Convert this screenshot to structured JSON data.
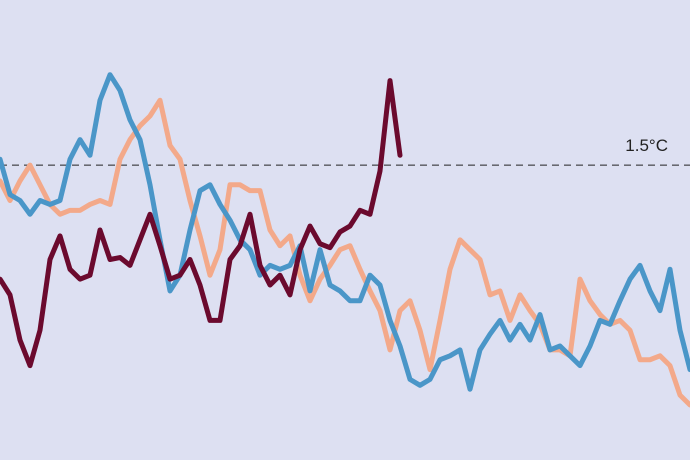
{
  "chart_data": {
    "type": "line",
    "categories": [
      null,
      null,
      null,
      null,
      null,
      null,
      null,
      null,
      null,
      null,
      null,
      null,
      null,
      null,
      null,
      null,
      null,
      null,
      null,
      null,
      null,
      null,
      null,
      null,
      null,
      null,
      null,
      null,
      null,
      null,
      null,
      null,
      null,
      null,
      null,
      null,
      null,
      null,
      null,
      null,
      null,
      null,
      null,
      null,
      null,
      null,
      null,
      null,
      null,
      null,
      null,
      null,
      null,
      null,
      null,
      null,
      null,
      null,
      null,
      null,
      null,
      null,
      null,
      null,
      null,
      null,
      null,
      null,
      null,
      null
    ],
    "ylim": [
      0,
      2.34
    ],
    "reference_lines": [
      {
        "value": 1.5,
        "label": "1.5°C"
      }
    ],
    "series": [
      {
        "color": "#f3a98a",
        "values": [
          1.42,
          1.32,
          1.42,
          1.5,
          1.4,
          1.3,
          1.25,
          1.27,
          1.27,
          1.3,
          1.32,
          1.3,
          1.53,
          1.63,
          1.7,
          1.75,
          1.83,
          1.6,
          1.53,
          1.32,
          1.14,
          0.94,
          1.07,
          1.4,
          1.4,
          1.37,
          1.37,
          1.17,
          1.09,
          1.14,
          0.94,
          0.81,
          0.92,
          0.99,
          1.07,
          1.09,
          0.97,
          0.86,
          0.76,
          0.56,
          0.76,
          0.81,
          0.66,
          0.46,
          0.71,
          0.97,
          1.12,
          1.07,
          1.02,
          0.84,
          0.86,
          0.71,
          0.84,
          0.76,
          0.69,
          0.56,
          0.56,
          0.53,
          0.92,
          0.81,
          0.74,
          0.69,
          0.71,
          0.66,
          0.51,
          0.51,
          0.53,
          0.48,
          0.33,
          0.28
        ]
      },
      {
        "color": "#4a96c8",
        "values": [
          1.53,
          1.35,
          1.32,
          1.25,
          1.32,
          1.3,
          1.32,
          1.53,
          1.63,
          1.55,
          1.83,
          1.96,
          1.88,
          1.73,
          1.63,
          1.4,
          1.12,
          0.86,
          0.94,
          1.17,
          1.37,
          1.4,
          1.3,
          1.22,
          1.12,
          1.07,
          0.94,
          0.99,
          0.97,
          0.99,
          1.09,
          0.86,
          1.07,
          0.89,
          0.86,
          0.81,
          0.81,
          0.94,
          0.89,
          0.71,
          0.58,
          0.41,
          0.38,
          0.41,
          0.51,
          0.53,
          0.56,
          0.36,
          0.56,
          0.64,
          0.71,
          0.61,
          0.69,
          0.61,
          0.74,
          0.56,
          0.58,
          0.53,
          0.48,
          0.58,
          0.71,
          0.69,
          0.81,
          0.92,
          0.99,
          0.86,
          0.76,
          0.97,
          0.66,
          0.46
        ]
      },
      {
        "color": "#6b0a2e",
        "values": [
          0.92,
          0.84,
          0.61,
          0.48,
          0.66,
          1.02,
          1.14,
          0.97,
          0.92,
          0.94,
          1.17,
          1.02,
          1.03,
          0.99,
          1.12,
          1.25,
          1.09,
          0.92,
          0.94,
          1.02,
          0.89,
          0.71,
          0.71,
          1.02,
          1.09,
          1.25,
          0.99,
          0.89,
          0.94,
          0.84,
          1.07,
          1.19,
          1.1,
          1.08,
          1.16,
          1.19,
          1.27,
          1.25,
          1.47,
          1.93,
          1.55,
          null,
          null,
          null,
          null,
          null,
          null,
          null,
          null,
          null,
          null,
          null,
          null,
          null,
          null,
          null,
          null,
          null,
          null,
          null,
          null,
          null,
          null,
          null,
          null,
          null,
          null,
          null,
          null,
          null
        ]
      }
    ]
  }
}
